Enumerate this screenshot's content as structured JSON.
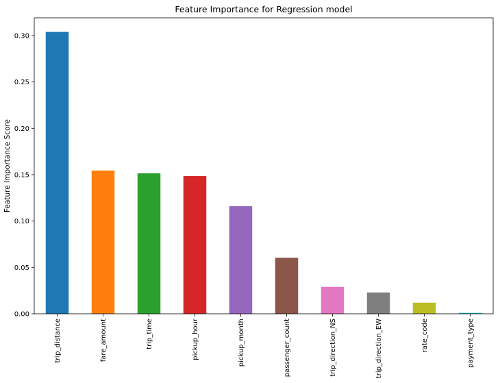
{
  "chart_data": {
    "type": "bar",
    "title": "Feature Importance for Regression model",
    "xlabel": "",
    "ylabel": "Feature Importance Score",
    "categories": [
      "trip_distance",
      "fare_amount",
      "trip_time",
      "pickup_hour",
      "pickup_month",
      "passenger_count",
      "trip_direction_NS",
      "trip_direction_EW",
      "rate_code",
      "payment_type"
    ],
    "values": [
      0.304,
      0.1545,
      0.1515,
      0.1485,
      0.116,
      0.0605,
      0.029,
      0.023,
      0.012,
      0.001
    ],
    "colors": [
      "#1f77b4",
      "#ff7f0e",
      "#2ca02c",
      "#d62728",
      "#9467bd",
      "#8c564b",
      "#e377c2",
      "#7f7f7f",
      "#bcbd22",
      "#17becf"
    ],
    "yticks": [
      "0.00",
      "0.05",
      "0.10",
      "0.15",
      "0.20",
      "0.25",
      "0.30"
    ],
    "ylim": [
      0,
      0.3192
    ],
    "grid": false,
    "legend": false
  }
}
